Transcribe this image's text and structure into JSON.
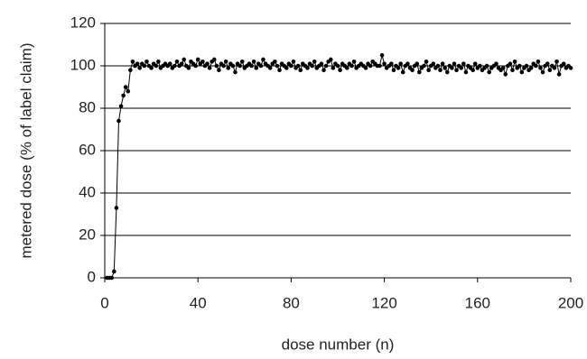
{
  "chart_data": {
    "type": "line",
    "x_label": "dose number (n)",
    "y_label": "metered dose (% of label claim)",
    "xlim": [
      0,
      200
    ],
    "xticks": [
      0,
      40,
      80,
      120,
      160,
      200
    ],
    "ylim": [
      0,
      120
    ],
    "yticks": [
      0,
      20,
      40,
      60,
      80,
      100,
      120
    ],
    "grid": true,
    "x": [
      1,
      2,
      3,
      4,
      5,
      6,
      7,
      8,
      9,
      10,
      11,
      12,
      13,
      14,
      15,
      16,
      17,
      18,
      19,
      20,
      21,
      22,
      23,
      24,
      25,
      26,
      27,
      28,
      29,
      30,
      31,
      32,
      33,
      34,
      35,
      36,
      37,
      38,
      39,
      40,
      41,
      42,
      43,
      44,
      45,
      46,
      47,
      48,
      49,
      50,
      51,
      52,
      53,
      54,
      55,
      56,
      57,
      58,
      59,
      60,
      61,
      62,
      63,
      64,
      65,
      66,
      67,
      68,
      69,
      70,
      71,
      72,
      73,
      74,
      75,
      76,
      77,
      78,
      79,
      80,
      81,
      82,
      83,
      84,
      85,
      86,
      87,
      88,
      89,
      90,
      91,
      92,
      93,
      94,
      95,
      96,
      97,
      98,
      99,
      100,
      101,
      102,
      103,
      104,
      105,
      106,
      107,
      108,
      109,
      110,
      111,
      112,
      113,
      114,
      115,
      116,
      117,
      118,
      119,
      120,
      121,
      122,
      123,
      124,
      125,
      126,
      127,
      128,
      129,
      130,
      131,
      132,
      133,
      134,
      135,
      136,
      137,
      138,
      139,
      140,
      141,
      142,
      143,
      144,
      145,
      146,
      147,
      148,
      149,
      150,
      151,
      152,
      153,
      154,
      155,
      156,
      157,
      158,
      159,
      160,
      161,
      162,
      163,
      164,
      165,
      166,
      167,
      168,
      169,
      170,
      171,
      172,
      173,
      174,
      175,
      176,
      177,
      178,
      179,
      180,
      181,
      182,
      183,
      184,
      185,
      186,
      187,
      188,
      189,
      190,
      191,
      192,
      193,
      194,
      195,
      196,
      197,
      198,
      199,
      200
    ],
    "series": [
      {
        "color": "#000000",
        "values": [
          0,
          0,
          0,
          3,
          33,
          74,
          81,
          86,
          90,
          88,
          98,
          102,
          100,
          101,
          99,
          101,
          100,
          102,
          100,
          99,
          101,
          100,
          102,
          99,
          100,
          101,
          100,
          101,
          99,
          100,
          102,
          100,
          101,
          103,
          100,
          99,
          102,
          101,
          100,
          103,
          101,
          102,
          100,
          101,
          99,
          102,
          103,
          100,
          98,
          101,
          100,
          102,
          99,
          101,
          100,
          97,
          101,
          100,
          102,
          99,
          100,
          101,
          100,
          102,
          99,
          101,
          100,
          103,
          101,
          100,
          99,
          101,
          102,
          100,
          98,
          101,
          100,
          99,
          101,
          100,
          102,
          99,
          100,
          98,
          101,
          100,
          99,
          101,
          100,
          102,
          99,
          100,
          101,
          98,
          100,
          102,
          103,
          99,
          101,
          100,
          98,
          101,
          100,
          99,
          101,
          100,
          102,
          99,
          100,
          101,
          100,
          99,
          101,
          100,
          102,
          101,
          100,
          100,
          105,
          101,
          99,
          100,
          101,
          98,
          100,
          99,
          101,
          97,
          100,
          101,
          99,
          98,
          100,
          101,
          97,
          99,
          100,
          102,
          98,
          100,
          101,
          99,
          100,
          98,
          101,
          99,
          97,
          100,
          99,
          101,
          98,
          100,
          99,
          101,
          97,
          100,
          99,
          98,
          101,
          99,
          100,
          98,
          99,
          100,
          97,
          99,
          100,
          101,
          99,
          98,
          99,
          96,
          100,
          101,
          98,
          102,
          99,
          100,
          97,
          99,
          100,
          98,
          99,
          101,
          100,
          102,
          99,
          97,
          100,
          101,
          98,
          100,
          99,
          102,
          96,
          100,
          101,
          99,
          100,
          99
        ]
      }
    ]
  }
}
